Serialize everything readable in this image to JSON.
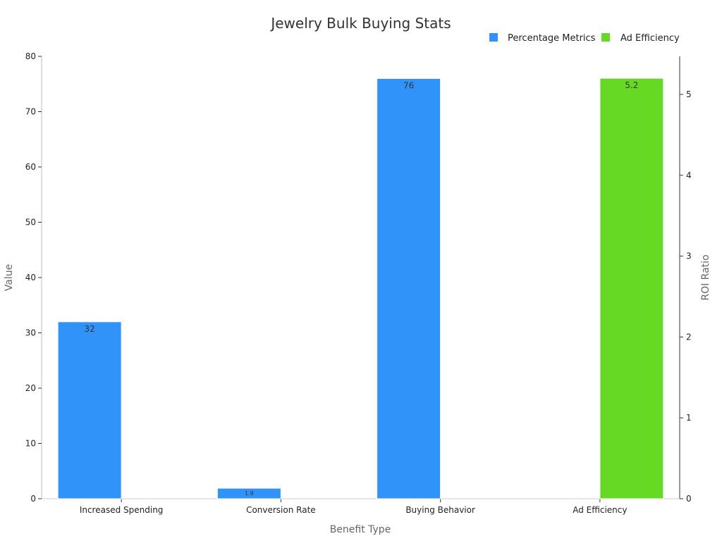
{
  "chart_data": {
    "type": "bar",
    "title": "Jewelry Bulk Buying Stats",
    "xlabel": "Benefit Type",
    "ylabel": "Value",
    "y2label": "ROI Ratio",
    "categories": [
      "Increased Spending",
      "Conversion Rate",
      "Buying Behavior",
      "Ad Efficiency"
    ],
    "ylim": [
      0,
      80
    ],
    "y2lim": [
      0,
      5.5
    ],
    "yticks": [
      0,
      10,
      20,
      30,
      40,
      50,
      60,
      70,
      80
    ],
    "y2ticks": [
      0,
      1,
      2,
      3,
      4,
      5
    ],
    "legend_position": "top-right",
    "grid": false,
    "series": [
      {
        "name": "Percentage Metrics",
        "axis": "left",
        "color": "#2f93f9",
        "values": [
          32,
          1.9,
          76,
          null
        ],
        "labels": [
          "32",
          "1.9",
          "76",
          ""
        ]
      },
      {
        "name": "Ad Efficiency",
        "axis": "right",
        "color": "#66d924",
        "values": [
          null,
          null,
          null,
          5.2
        ],
        "labels": [
          "",
          "",
          "",
          "5.2"
        ]
      }
    ]
  }
}
